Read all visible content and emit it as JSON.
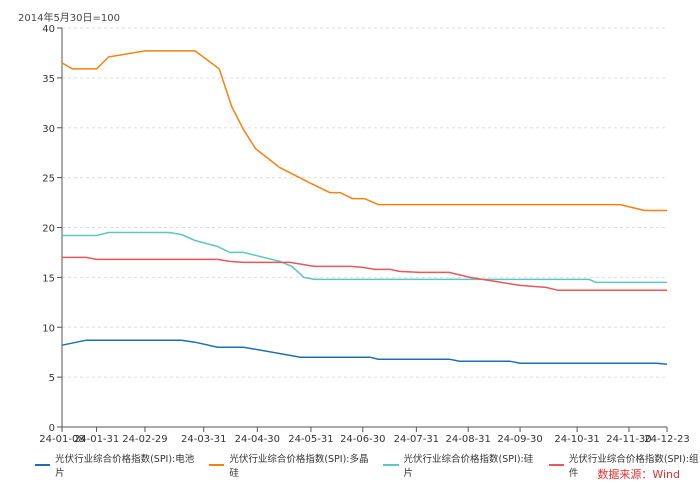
{
  "chart_data": {
    "type": "line",
    "unit_label": "2014年5月30日=100",
    "xlabel": "",
    "ylabel": "",
    "x_unit": "days since 24-01-08",
    "xlim": [
      0,
      350
    ],
    "ylim": [
      0,
      40
    ],
    "y_ticks": [
      0,
      5,
      10,
      15,
      20,
      25,
      30,
      35,
      40
    ],
    "x_ticks": [
      {
        "label": "24-01-08",
        "day": 0
      },
      {
        "label": "24-01-31",
        "day": 20
      },
      {
        "label": "24-02-29",
        "day": 48
      },
      {
        "label": "24-03-31",
        "day": 82
      },
      {
        "label": "24-04-30",
        "day": 113
      },
      {
        "label": "24-05-31",
        "day": 144
      },
      {
        "label": "24-06-30",
        "day": 174
      },
      {
        "label": "24-07-31",
        "day": 205
      },
      {
        "label": "24-08-31",
        "day": 235
      },
      {
        "label": "24-09-30",
        "day": 265
      },
      {
        "label": "24-10-31",
        "day": 298
      },
      {
        "label": "24-11-30",
        "day": 328
      },
      {
        "label": "24-12-23",
        "day": 350
      }
    ],
    "grid": true,
    "legend_position": "bottom",
    "series": [
      {
        "name": "光伏行业综合价格指数(SPI):电池片",
        "color": "#1f6fb0",
        "points": [
          [
            0,
            8.2
          ],
          [
            14,
            8.7
          ],
          [
            69,
            8.7
          ],
          [
            77,
            8.5
          ],
          [
            90,
            8.0
          ],
          [
            105,
            8.0
          ],
          [
            138,
            7.0
          ],
          [
            178,
            7.0
          ],
          [
            183,
            6.8
          ],
          [
            224,
            6.8
          ],
          [
            230,
            6.6
          ],
          [
            259,
            6.6
          ],
          [
            265,
            6.4
          ],
          [
            344,
            6.4
          ],
          [
            350,
            6.3
          ]
        ]
      },
      {
        "name": "光伏行业综合价格指数(SPI):多晶硅",
        "color": "#f5820f",
        "points": [
          [
            0,
            36.5
          ],
          [
            6,
            35.9
          ],
          [
            20,
            35.9
          ],
          [
            27,
            37.1
          ],
          [
            48,
            37.7
          ],
          [
            77,
            37.7
          ],
          [
            91,
            35.9
          ],
          [
            98,
            32.2
          ],
          [
            105,
            29.8
          ],
          [
            112,
            27.9
          ],
          [
            126,
            26.0
          ],
          [
            143,
            24.5
          ],
          [
            155,
            23.5
          ],
          [
            161,
            23.5
          ],
          [
            168,
            22.9
          ],
          [
            175,
            22.9
          ],
          [
            183,
            22.3
          ],
          [
            323,
            22.3
          ],
          [
            337,
            21.7
          ],
          [
            350,
            21.7
          ]
        ]
      },
      {
        "name": "光伏行业综合价格指数(SPI):硅片",
        "color": "#5cc6c4",
        "points": [
          [
            0,
            19.2
          ],
          [
            20,
            19.2
          ],
          [
            27,
            19.5
          ],
          [
            62,
            19.5
          ],
          [
            69,
            19.3
          ],
          [
            77,
            18.7
          ],
          [
            90,
            18.1
          ],
          [
            97,
            17.5
          ],
          [
            105,
            17.5
          ],
          [
            126,
            16.6
          ],
          [
            133,
            16.1
          ],
          [
            140,
            15.0
          ],
          [
            146,
            14.8
          ],
          [
            305,
            14.8
          ],
          [
            309,
            14.5
          ],
          [
            350,
            14.5
          ]
        ]
      },
      {
        "name": "光伏行业综合价格指数(SPI):组件",
        "color": "#e8575a",
        "points": [
          [
            0,
            17.0
          ],
          [
            14,
            17.0
          ],
          [
            20,
            16.8
          ],
          [
            90,
            16.8
          ],
          [
            97,
            16.6
          ],
          [
            105,
            16.5
          ],
          [
            132,
            16.5
          ],
          [
            146,
            16.1
          ],
          [
            167,
            16.1
          ],
          [
            174,
            16.0
          ],
          [
            181,
            15.8
          ],
          [
            190,
            15.8
          ],
          [
            195,
            15.6
          ],
          [
            207,
            15.5
          ],
          [
            224,
            15.5
          ],
          [
            236,
            15.0
          ],
          [
            265,
            14.2
          ],
          [
            280,
            14.0
          ],
          [
            287,
            13.7
          ],
          [
            350,
            13.7
          ]
        ]
      }
    ],
    "source": "数据来源：Wind"
  }
}
